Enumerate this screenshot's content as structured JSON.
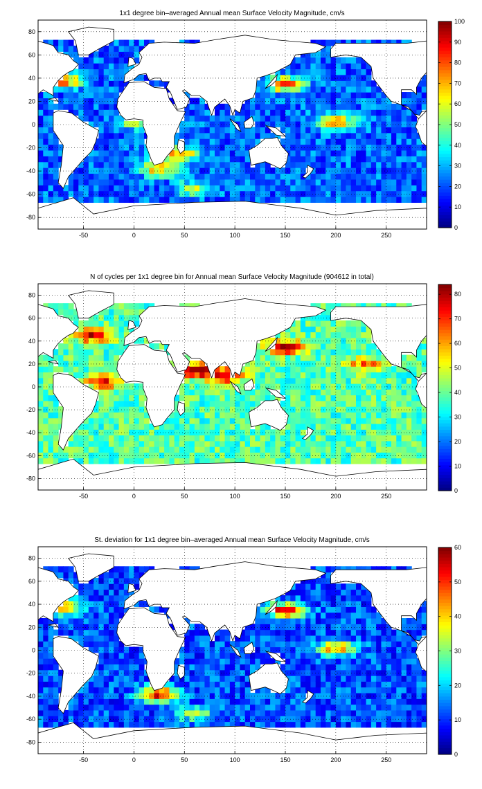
{
  "chart_data": [
    {
      "type": "heatmap",
      "title": "1x1 degree bin–averaged Annual mean Surface Velocity Magnitude, cm/s",
      "xlabel": "",
      "ylabel": "",
      "xlim": [
        -95,
        290
      ],
      "ylim": [
        -90,
        90
      ],
      "xticks": [
        -50,
        0,
        50,
        100,
        150,
        200,
        250
      ],
      "yticks": [
        -80,
        -60,
        -40,
        -20,
        0,
        20,
        40,
        60,
        80
      ],
      "grid": true,
      "colormap": "jet",
      "clim": [
        0,
        100
      ],
      "colorbar_ticks": [
        0,
        10,
        20,
        30,
        40,
        50,
        60,
        70,
        80,
        90,
        100
      ],
      "background": "#ffffff",
      "ocean_base_value": 22,
      "features": [
        {
          "lon": 0,
          "lat": 2,
          "value": 55
        },
        {
          "lon": 200,
          "lat": 2,
          "value": 80
        },
        {
          "lon": 150,
          "lat": 35,
          "value": 85
        },
        {
          "lon": -70,
          "lat": 38,
          "value": 80
        },
        {
          "lon": 25,
          "lat": -38,
          "value": 70
        },
        {
          "lon": 60,
          "lat": -55,
          "value": 55
        },
        {
          "lon": 45,
          "lat": -25,
          "value": 75
        }
      ]
    },
    {
      "type": "heatmap",
      "title": "N of cycles per 1x1 degree bin for Annual mean Surface Velocity Magnitude (904612 in total)",
      "xlabel": "",
      "ylabel": "",
      "xlim": [
        -95,
        290
      ],
      "ylim": [
        -90,
        90
      ],
      "xticks": [
        -50,
        0,
        50,
        100,
        150,
        200,
        250
      ],
      "yticks": [
        -80,
        -60,
        -40,
        -20,
        0,
        20,
        40,
        60,
        80
      ],
      "grid": true,
      "colormap": "jet",
      "clim": [
        0,
        84
      ],
      "colorbar_ticks": [
        0,
        10,
        20,
        30,
        40,
        50,
        60,
        70,
        80
      ],
      "background": "#ffffff",
      "total_count": 904612,
      "ocean_base_value": 38,
      "features": [
        {
          "lon": 150,
          "lat": 35,
          "value": 84
        },
        {
          "lon": -40,
          "lat": 45,
          "value": 75
        },
        {
          "lon": 60,
          "lat": 15,
          "value": 84
        },
        {
          "lon": 90,
          "lat": 10,
          "value": 80
        },
        {
          "lon": 230,
          "lat": 20,
          "value": 65
        },
        {
          "lon": -30,
          "lat": 5,
          "value": 70
        }
      ]
    },
    {
      "type": "heatmap",
      "title": "St. deviation for 1x1 degree bin–averaged Annual mean Surface Velocity Magnitude, cm/s",
      "xlabel": "",
      "ylabel": "",
      "xlim": [
        -95,
        290
      ],
      "ylim": [
        -90,
        90
      ],
      "xticks": [
        -50,
        0,
        50,
        100,
        150,
        200,
        250
      ],
      "yticks": [
        -80,
        -60,
        -40,
        -20,
        0,
        20,
        40,
        60,
        80
      ],
      "grid": true,
      "colormap": "jet",
      "clim": [
        0,
        60
      ],
      "colorbar_ticks": [
        0,
        10,
        20,
        30,
        40,
        50,
        60
      ],
      "background": "#ffffff",
      "ocean_base_value": 12,
      "features": [
        {
          "lon": 150,
          "lat": 35,
          "value": 55
        },
        {
          "lon": -70,
          "lat": 38,
          "value": 52
        },
        {
          "lon": 25,
          "lat": -38,
          "value": 55
        },
        {
          "lon": 200,
          "lat": 2,
          "value": 45
        },
        {
          "lon": 60,
          "lat": -55,
          "value": 32
        }
      ]
    }
  ]
}
